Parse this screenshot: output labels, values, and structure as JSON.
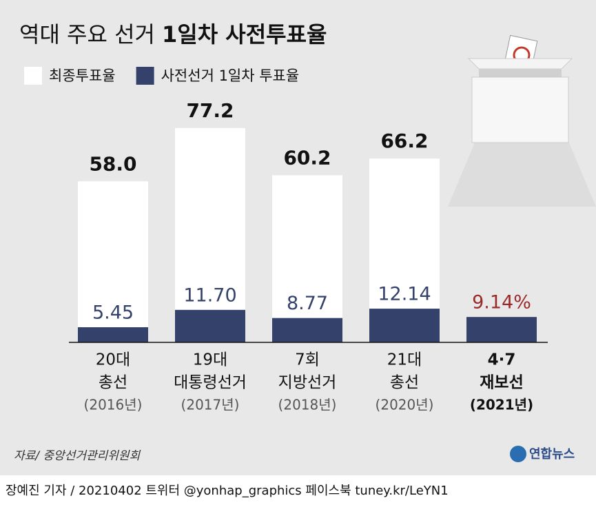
{
  "chart_data": {
    "type": "bar",
    "title": [
      "역대 주요 선거",
      "1일차 사전투표율"
    ],
    "categories": [
      [
        "20대",
        "총선",
        "(2016년)"
      ],
      [
        "19대",
        "대통령선거",
        "(2017년)"
      ],
      [
        "7회",
        "지방선거",
        "(2018년)"
      ],
      [
        "21대",
        "총선",
        "(2020년)"
      ],
      [
        "4·7",
        "재보선",
        "(2021년)"
      ]
    ],
    "series": [
      {
        "name": "최종투표율",
        "color": "#ffffff",
        "label_color": "#111111",
        "values": [
          58.0,
          77.2,
          60.2,
          66.2,
          null
        ],
        "value_labels": [
          "58.0",
          "77.2",
          "60.2",
          "66.2",
          null
        ]
      },
      {
        "name": "사전선거 1일차 투표율",
        "color": "#34426b",
        "label_color": "#34426b",
        "highlight_color": "#9b2a2a",
        "values": [
          5.45,
          11.7,
          8.77,
          12.14,
          9.14
        ],
        "value_labels": [
          "5.45",
          "11.70",
          "8.77",
          "12.14",
          "9.14%"
        ]
      }
    ],
    "source": "자료/ 중앙선거관리위원회",
    "logo": "연합뉴스",
    "footer": "장예진 기자 / 20210402 트위터 @yonhap_graphics  페이스북 tuney.kr/LeYN1"
  }
}
